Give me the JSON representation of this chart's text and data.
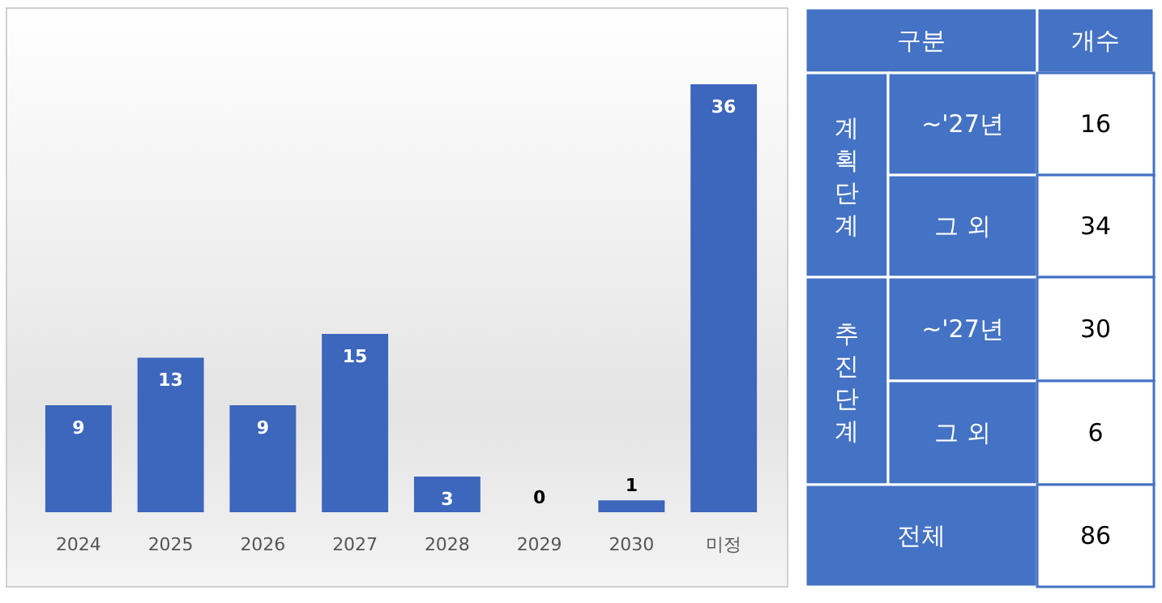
{
  "chart_data": [
    {
      "type": "bar",
      "categories": [
        "2024",
        "2025",
        "2026",
        "2027",
        "2028",
        "2029",
        "2030",
        "미정"
      ],
      "values": [
        9,
        13,
        9,
        15,
        3,
        0,
        1,
        36
      ],
      "color": "#3d66bd",
      "data_labels": true
    },
    {
      "type": "other",
      "annotations": [
        "구분",
        "개수",
        "계획단계",
        "~'27년",
        "16",
        "그 외",
        "34",
        "추진단계",
        "~'27년",
        "30",
        "그 외",
        "6",
        "전체",
        "86"
      ]
    }
  ]
}
